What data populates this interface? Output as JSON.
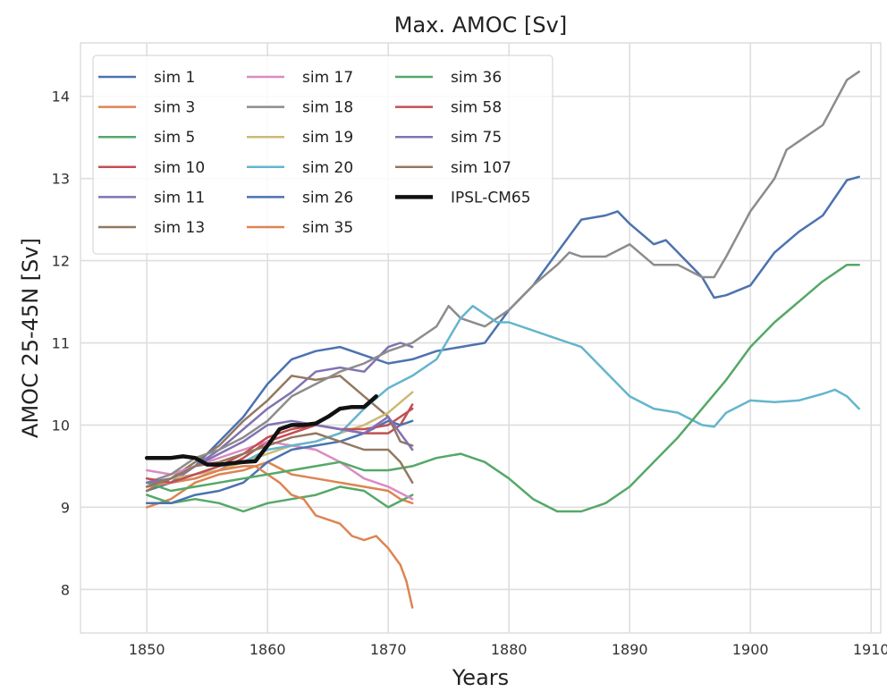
{
  "chart_data": {
    "type": "line",
    "title": "Max. AMOC [Sv]",
    "xlabel": "Years",
    "ylabel": "AMOC 25-45N [Sv]",
    "xlim": [
      1844.5,
      1910.8
    ],
    "ylim": [
      7.47,
      14.65
    ],
    "xticks": [
      1850,
      1860,
      1870,
      1880,
      1890,
      1900,
      1910
    ],
    "yticks": [
      8,
      9,
      10,
      11,
      12,
      13,
      14
    ],
    "grid": true,
    "legend": {
      "placement": "top-left",
      "columns": 3
    },
    "series": [
      {
        "name": "sim 1",
        "color": "#4c72b0",
        "x": [
          1850,
          1852,
          1854,
          1856,
          1858,
          1860,
          1862,
          1864,
          1866,
          1868,
          1870,
          1872,
          1874,
          1876,
          1878,
          1880,
          1882,
          1884,
          1886,
          1888,
          1889,
          1890,
          1892,
          1893,
          1894,
          1896,
          1897,
          1898,
          1900,
          1902,
          1904,
          1906,
          1908,
          1909
        ],
        "y": [
          9.2,
          9.3,
          9.5,
          9.8,
          10.1,
          10.5,
          10.8,
          10.9,
          10.95,
          10.85,
          10.75,
          10.8,
          10.9,
          10.95,
          11.0,
          11.4,
          11.7,
          12.1,
          12.5,
          12.55,
          12.6,
          12.45,
          12.2,
          12.25,
          12.1,
          11.8,
          11.55,
          11.58,
          11.7,
          12.1,
          12.35,
          12.55,
          12.98,
          13.02
        ]
      },
      {
        "name": "sim 3",
        "color": "#dd8452",
        "x": [
          1850,
          1852,
          1854,
          1856,
          1858,
          1860,
          1862,
          1864,
          1866,
          1868,
          1870,
          1871,
          1872
        ],
        "y": [
          9.0,
          9.1,
          9.3,
          9.4,
          9.45,
          9.55,
          9.4,
          9.35,
          9.3,
          9.25,
          9.2,
          9.1,
          9.05
        ]
      },
      {
        "name": "sim 5",
        "color": "#55a868",
        "x": [
          1850,
          1852,
          1854,
          1856,
          1858,
          1860,
          1862,
          1864,
          1866,
          1868,
          1870,
          1872
        ],
        "y": [
          9.15,
          9.05,
          9.1,
          9.05,
          8.95,
          9.05,
          9.1,
          9.15,
          9.25,
          9.2,
          9.0,
          9.15
        ]
      },
      {
        "name": "sim 10",
        "color": "#c44e52",
        "x": [
          1850,
          1852,
          1854,
          1856,
          1858,
          1860,
          1862,
          1864,
          1866,
          1868,
          1870,
          1871,
          1872
        ],
        "y": [
          9.3,
          9.3,
          9.35,
          9.45,
          9.6,
          9.8,
          9.9,
          10.0,
          9.95,
          9.9,
          9.9,
          10.0,
          10.25
        ]
      },
      {
        "name": "sim 11",
        "color": "#8172b3",
        "x": [
          1850,
          1852,
          1854,
          1856,
          1858,
          1860,
          1862,
          1864,
          1866,
          1868,
          1870,
          1871,
          1872
        ],
        "y": [
          9.25,
          9.3,
          9.5,
          9.7,
          9.95,
          10.2,
          10.4,
          10.65,
          10.7,
          10.65,
          10.95,
          11.0,
          10.95
        ]
      },
      {
        "name": "sim 13",
        "color": "#937860",
        "x": [
          1850,
          1852,
          1854,
          1856,
          1858,
          1860,
          1862,
          1864,
          1866,
          1868,
          1870,
          1871,
          1872
        ],
        "y": [
          9.2,
          9.35,
          9.55,
          9.75,
          10.05,
          10.3,
          10.6,
          10.55,
          10.6,
          10.35,
          10.1,
          9.8,
          9.75
        ]
      },
      {
        "name": "sim 17",
        "color": "#da8bc3",
        "x": [
          1850,
          1852,
          1854,
          1856,
          1858,
          1860,
          1862,
          1864,
          1866,
          1868,
          1870,
          1872
        ],
        "y": [
          9.45,
          9.4,
          9.5,
          9.6,
          9.7,
          9.8,
          9.75,
          9.7,
          9.55,
          9.35,
          9.25,
          9.1
        ]
      },
      {
        "name": "sim 18",
        "color": "#8c8c8c",
        "x": [
          1850,
          1852,
          1854,
          1856,
          1858,
          1860,
          1862,
          1864,
          1866,
          1868,
          1870,
          1872,
          1874,
          1875,
          1876,
          1878,
          1880,
          1882,
          1884,
          1885,
          1886,
          1888,
          1890,
          1892,
          1894,
          1896,
          1897,
          1898,
          1900,
          1902,
          1903,
          1904,
          1906,
          1908,
          1909
        ],
        "y": [
          9.3,
          9.4,
          9.6,
          9.7,
          9.85,
          10.05,
          10.35,
          10.5,
          10.65,
          10.75,
          10.9,
          11.0,
          11.2,
          11.45,
          11.3,
          11.2,
          11.4,
          11.7,
          11.95,
          12.1,
          12.05,
          12.05,
          12.2,
          11.95,
          11.95,
          11.8,
          11.8,
          12.05,
          12.6,
          13.0,
          13.35,
          13.45,
          13.65,
          14.2,
          14.3
        ]
      },
      {
        "name": "sim 19",
        "color": "#ccb974",
        "x": [
          1850,
          1852,
          1854,
          1856,
          1858,
          1860,
          1862,
          1864,
          1866,
          1868,
          1870,
          1872
        ],
        "y": [
          9.3,
          9.35,
          9.4,
          9.45,
          9.55,
          9.65,
          9.75,
          9.8,
          9.9,
          10.0,
          10.15,
          10.4
        ]
      },
      {
        "name": "sim 20",
        "color": "#64b5cd",
        "x": [
          1850,
          1852,
          1854,
          1856,
          1858,
          1860,
          1862,
          1864,
          1866,
          1868,
          1870,
          1872,
          1874,
          1876,
          1877,
          1878,
          1879,
          1880,
          1882,
          1884,
          1886,
          1888,
          1890,
          1892,
          1894,
          1896,
          1897,
          1898,
          1900,
          1902,
          1904,
          1906,
          1907,
          1908,
          1909
        ],
        "y": [
          9.35,
          9.3,
          9.4,
          9.5,
          9.55,
          9.7,
          9.75,
          9.8,
          9.9,
          10.2,
          10.45,
          10.6,
          10.8,
          11.3,
          11.45,
          11.35,
          11.25,
          11.25,
          11.15,
          11.05,
          10.95,
          10.65,
          10.35,
          10.2,
          10.15,
          10.0,
          9.98,
          10.15,
          10.3,
          10.28,
          10.3,
          10.38,
          10.43,
          10.35,
          10.2
        ]
      },
      {
        "name": "sim 26",
        "color": "#4c72b0",
        "x": [
          1850,
          1852,
          1854,
          1856,
          1858,
          1860,
          1862,
          1864,
          1866,
          1868,
          1870,
          1871,
          1872
        ],
        "y": [
          9.05,
          9.05,
          9.15,
          9.2,
          9.3,
          9.55,
          9.7,
          9.75,
          9.8,
          9.9,
          10.05,
          10.0,
          10.05
        ]
      },
      {
        "name": "sim 35",
        "color": "#dd8452",
        "x": [
          1850,
          1852,
          1854,
          1856,
          1858,
          1859,
          1860,
          1861,
          1862,
          1863,
          1864,
          1866,
          1867,
          1868,
          1869,
          1870,
          1871,
          1871.5,
          1872
        ],
        "y": [
          9.25,
          9.3,
          9.35,
          9.45,
          9.5,
          9.5,
          9.4,
          9.3,
          9.15,
          9.1,
          8.9,
          8.8,
          8.65,
          8.6,
          8.65,
          8.5,
          8.3,
          8.1,
          7.78
        ]
      },
      {
        "name": "sim 36",
        "color": "#55a868",
        "x": [
          1850,
          1852,
          1854,
          1856,
          1858,
          1860,
          1862,
          1864,
          1866,
          1868,
          1870,
          1872,
          1874,
          1876,
          1878,
          1880,
          1882,
          1884,
          1886,
          1888,
          1890,
          1892,
          1894,
          1896,
          1898,
          1900,
          1902,
          1904,
          1906,
          1908,
          1909
        ],
        "y": [
          9.3,
          9.2,
          9.25,
          9.3,
          9.35,
          9.4,
          9.45,
          9.5,
          9.55,
          9.45,
          9.45,
          9.5,
          9.6,
          9.65,
          9.55,
          9.35,
          9.1,
          8.95,
          8.95,
          9.05,
          9.25,
          9.55,
          9.85,
          10.2,
          10.55,
          10.95,
          11.25,
          11.5,
          11.75,
          11.95,
          11.95
        ]
      },
      {
        "name": "sim 58",
        "color": "#c44e52",
        "x": [
          1850,
          1852,
          1854,
          1856,
          1858,
          1860,
          1862,
          1864,
          1866,
          1868,
          1870,
          1872
        ],
        "y": [
          9.35,
          9.3,
          9.4,
          9.5,
          9.65,
          9.85,
          9.95,
          10.0,
          9.95,
          9.95,
          10.0,
          10.2
        ]
      },
      {
        "name": "sim 75",
        "color": "#8172b3",
        "x": [
          1850,
          1852,
          1854,
          1856,
          1858,
          1860,
          1862,
          1864,
          1866,
          1868,
          1870,
          1871,
          1872
        ],
        "y": [
          9.3,
          9.35,
          9.5,
          9.65,
          9.8,
          10.0,
          10.05,
          10.0,
          9.95,
          9.9,
          10.1,
          9.9,
          9.7
        ]
      },
      {
        "name": "sim 107",
        "color": "#937860",
        "x": [
          1850,
          1852,
          1854,
          1856,
          1858,
          1860,
          1862,
          1864,
          1866,
          1868,
          1870,
          1871,
          1872
        ],
        "y": [
          9.25,
          9.35,
          9.5,
          9.55,
          9.65,
          9.75,
          9.85,
          9.9,
          9.8,
          9.7,
          9.7,
          9.55,
          9.3
        ]
      },
      {
        "name": "IPSL-CM65",
        "color": "#111111",
        "bold": true,
        "x": [
          1850,
          1852,
          1853,
          1854,
          1855,
          1856,
          1858,
          1859,
          1860,
          1861,
          1862,
          1863,
          1864,
          1865,
          1866,
          1867,
          1868,
          1869
        ],
        "y": [
          9.6,
          9.6,
          9.62,
          9.6,
          9.52,
          9.52,
          9.55,
          9.56,
          9.75,
          9.95,
          10.0,
          10.0,
          10.02,
          10.1,
          10.2,
          10.22,
          10.22,
          10.35
        ]
      }
    ]
  }
}
